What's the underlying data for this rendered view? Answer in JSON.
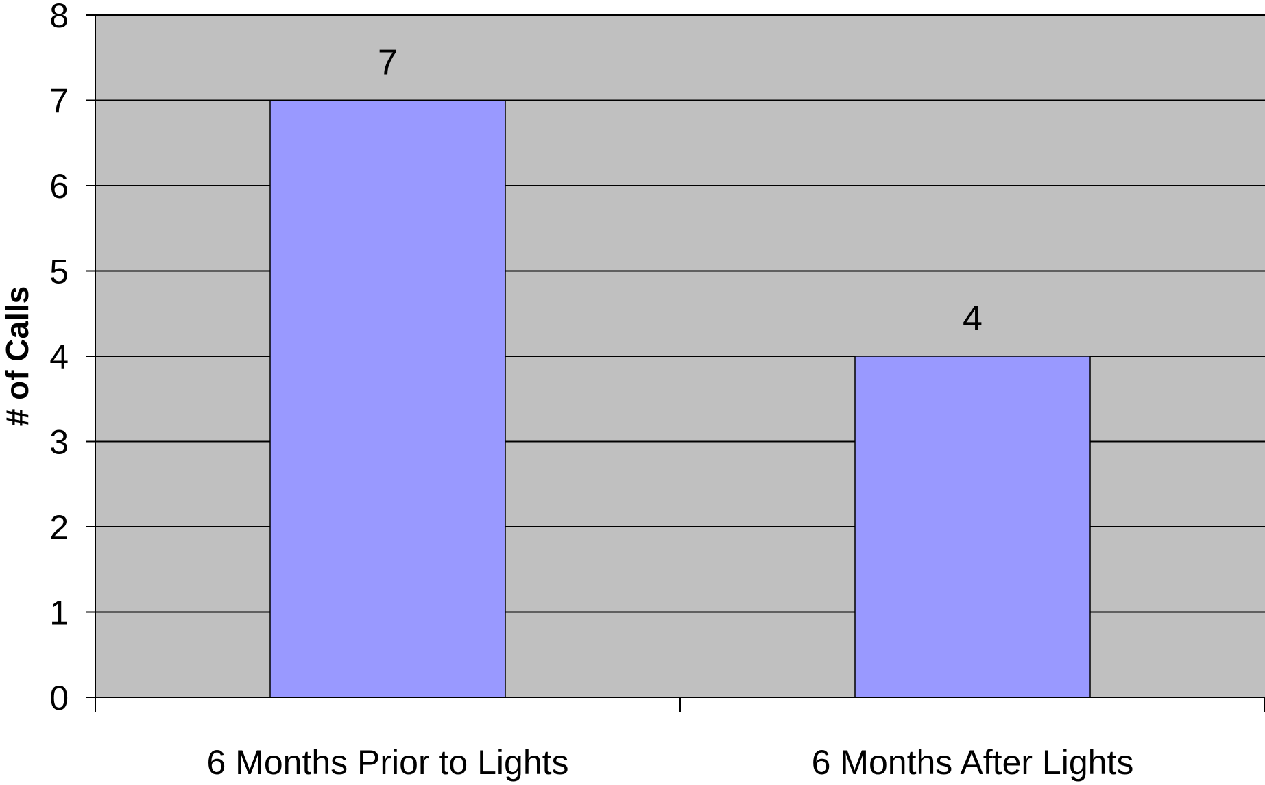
{
  "chart_data": {
    "type": "bar",
    "title": "",
    "xlabel": "",
    "ylabel": "# of Calls",
    "categories": [
      "6 Months Prior to Lights",
      "6 Months After Lights"
    ],
    "values": [
      7,
      4
    ],
    "data_labels": [
      "7",
      "4"
    ],
    "ylim": [
      0,
      8
    ],
    "yticks": [
      "0",
      "1",
      "2",
      "3",
      "4",
      "5",
      "6",
      "7",
      "8"
    ],
    "grid": true,
    "legend": "none"
  },
  "colors": {
    "plot_background": "#c0c0c0",
    "bar_fill": "#9999ff",
    "bar_stroke": "#000000",
    "gridline": "#000000",
    "axis": "#000000"
  }
}
